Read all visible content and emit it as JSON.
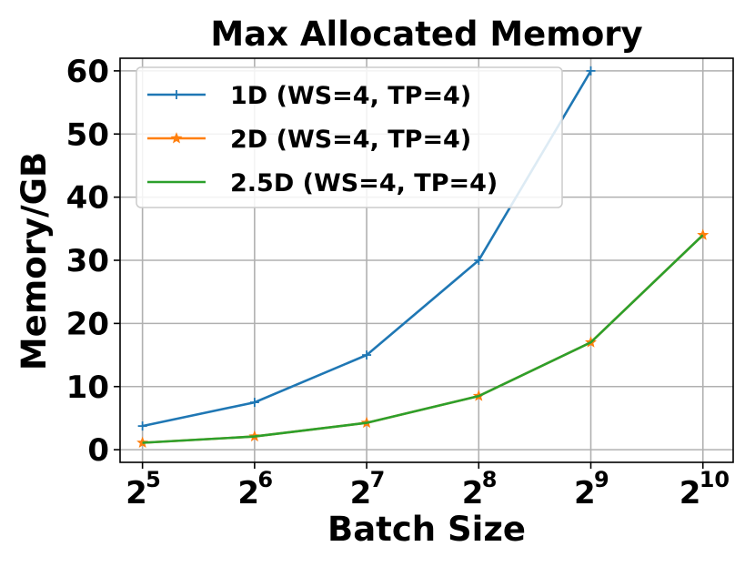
{
  "chart_data": {
    "type": "line",
    "title": "Max Allocated Memory",
    "xlabel": "Batch Size",
    "ylabel": "Memory/GB",
    "x_ticks": [
      {
        "base": "2",
        "exp": "5",
        "value": 5
      },
      {
        "base": "2",
        "exp": "6",
        "value": 6
      },
      {
        "base": "2",
        "exp": "7",
        "value": 7
      },
      {
        "base": "2",
        "exp": "8",
        "value": 8
      },
      {
        "base": "2",
        "exp": "9",
        "value": 9
      },
      {
        "base": "2",
        "exp": "10",
        "value": 10
      }
    ],
    "x_scale": "log2",
    "xlim_exponent": [
      4.8,
      10.27
    ],
    "y_ticks": [
      0,
      10,
      20,
      30,
      40,
      50,
      60
    ],
    "ylim": [
      -2,
      62
    ],
    "grid": true,
    "legend_position": "top-left",
    "x": [
      32,
      64,
      128,
      256,
      512,
      1024
    ],
    "series": [
      {
        "name": "1D (WS=4, TP=4)",
        "color": "#1f77b4",
        "marker": "plus",
        "values": [
          3.75,
          7.5,
          15,
          30,
          60,
          null
        ]
      },
      {
        "name": "2D (WS=4, TP=4)",
        "color": "#ff7f0e",
        "marker": "star",
        "values": [
          1.1,
          2.1,
          4.25,
          8.5,
          17,
          34
        ]
      },
      {
        "name": "2.5D (WS=4, TP=4)",
        "color": "#2ca02c",
        "marker": "none",
        "values": [
          1.1,
          2.1,
          4.25,
          8.5,
          17,
          34
        ]
      }
    ]
  }
}
